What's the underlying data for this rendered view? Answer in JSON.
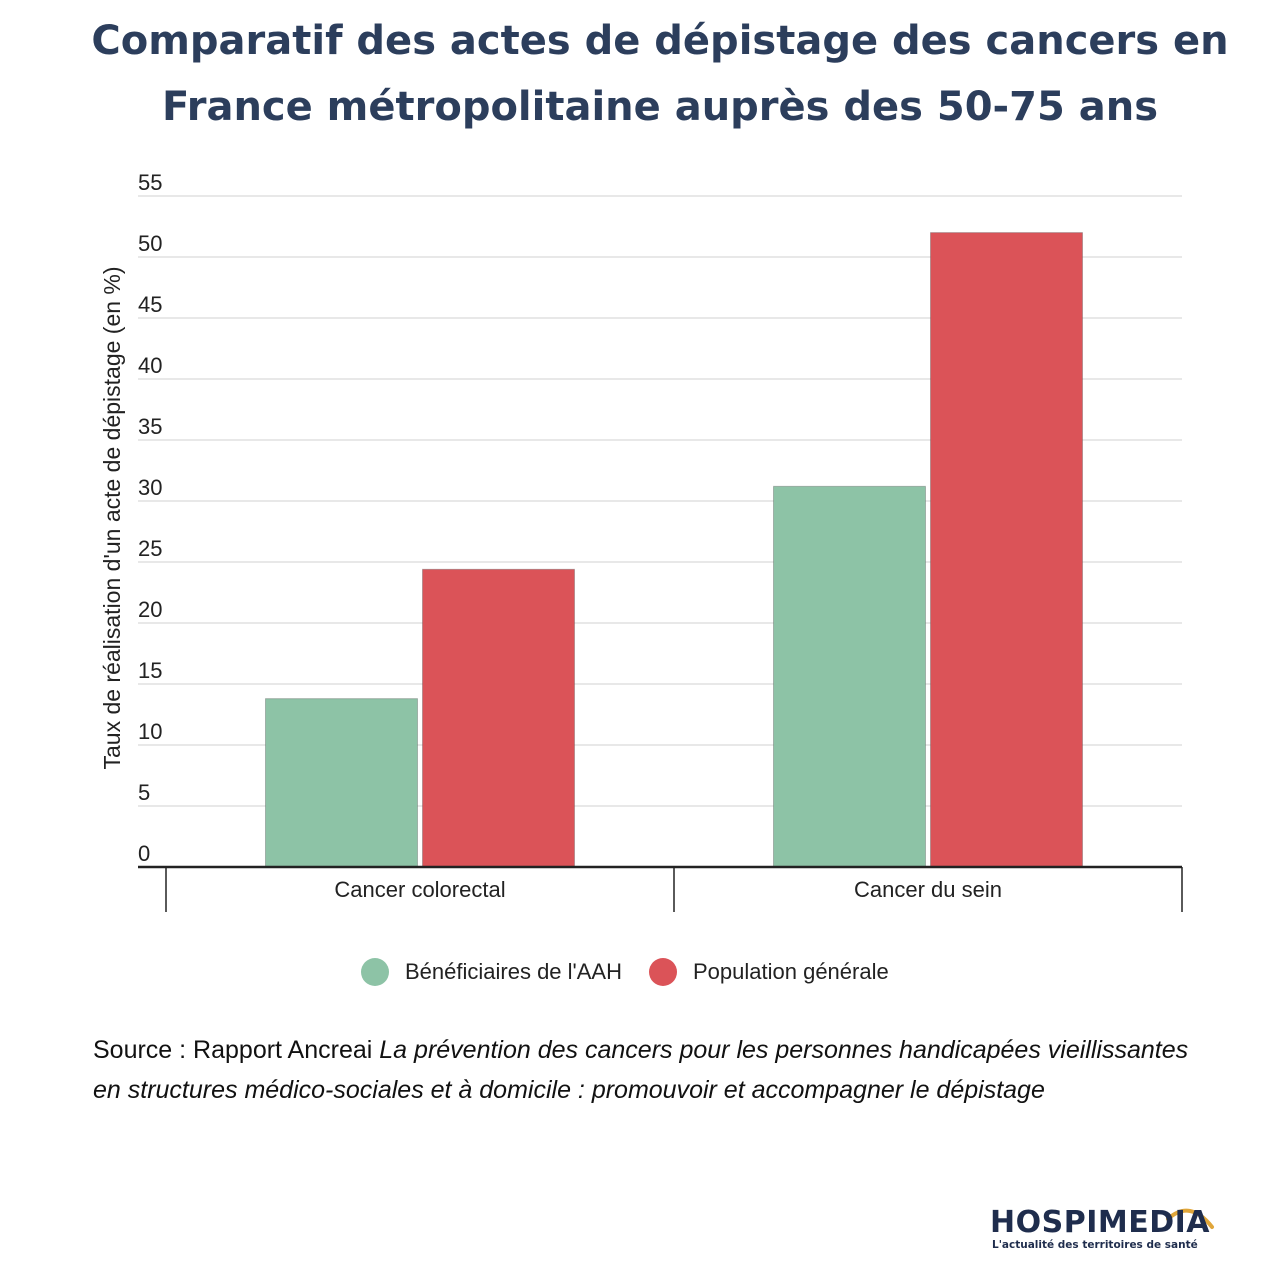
{
  "chart_data": {
    "type": "bar",
    "title": "Comparatif des actes de dépistage des cancers en France métropolitaine auprès des 50-75 ans",
    "categories": [
      "Cancer colorectal",
      "Cancer du sein"
    ],
    "series": [
      {
        "name": "Bénéficiaires de l'AAH",
        "values": [
          13.8,
          31.2
        ],
        "color": "#8dc3a6"
      },
      {
        "name": "Population générale",
        "values": [
          24.4,
          52.0
        ],
        "color": "#db5358"
      }
    ],
    "xlabel": "",
    "ylabel": "Taux de réalisation d'un acte de dépistage (en %)",
    "ylim": [
      0,
      55
    ],
    "yticks": [
      0,
      5,
      10,
      15,
      20,
      25,
      30,
      35,
      40,
      45,
      50,
      55
    ],
    "grid": true,
    "legend": "bottom"
  },
  "source": {
    "prefix": "Source : Rapport Ancreai ",
    "title": "La prévention des cancers pour les personnes handicapées vieillissantes en structures médico-sociales et à domicile : promouvoir et accompagner le dépistage"
  },
  "logo": {
    "name": "HOSPIMEDIA",
    "tagline": "L'actualité des territoires de santé",
    "arc_color": "#e0a63a"
  }
}
